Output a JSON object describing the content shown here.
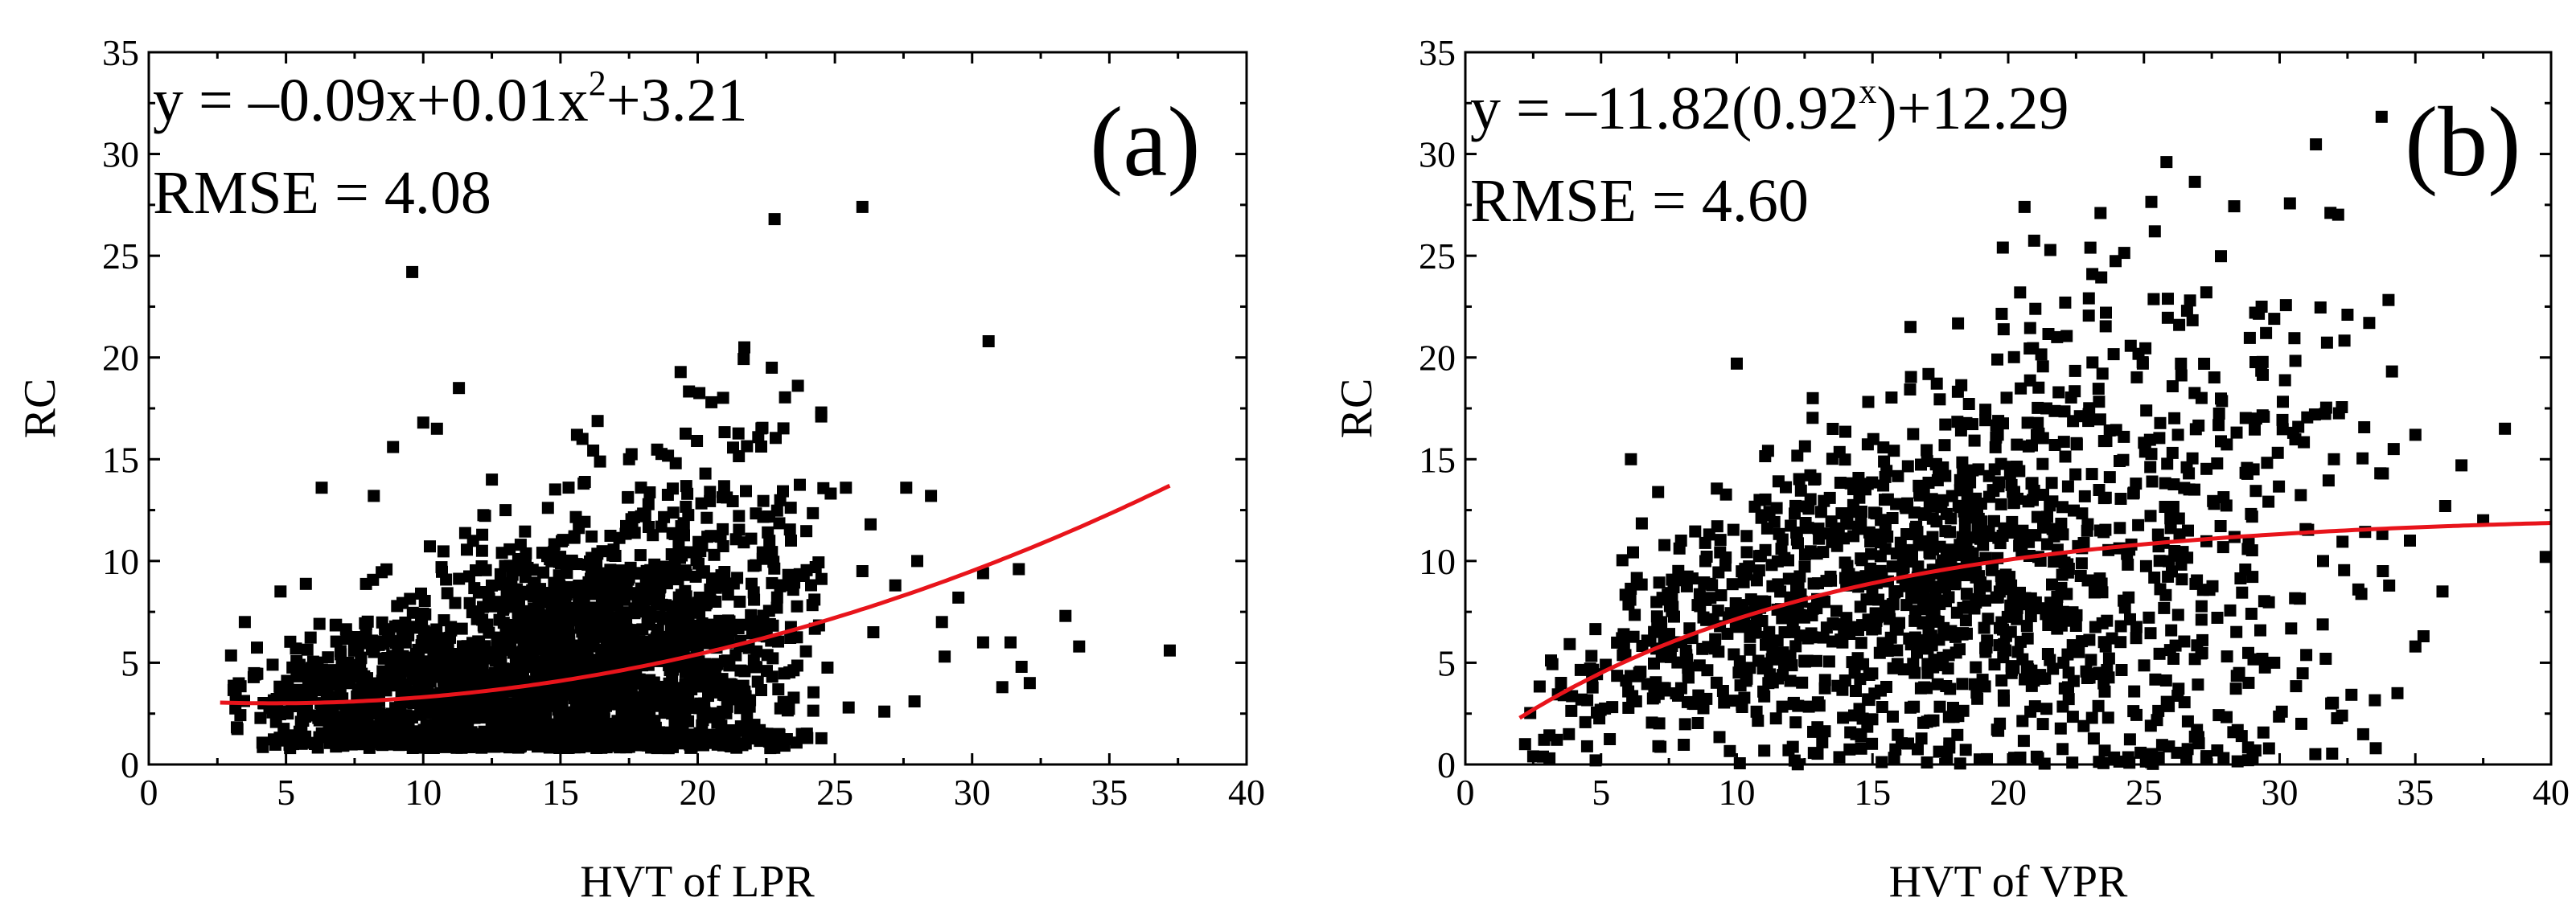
{
  "colors": {
    "points": "#000000",
    "fit": "#e8141b",
    "axis": "#000000",
    "background": "#ffffff"
  },
  "chart_data": [
    {
      "type": "scatter",
      "panel_label": "(a)",
      "title": "",
      "xlabel": "HVT of LPR",
      "ylabel": "RC",
      "xlim": [
        0,
        40
      ],
      "ylim": [
        0,
        35
      ],
      "xticks": [
        0,
        5,
        10,
        15,
        20,
        25,
        30,
        35,
        40
      ],
      "yticks": [
        0,
        5,
        10,
        15,
        20,
        25,
        30,
        35
      ],
      "equation": {
        "lhs": "y = ",
        "p1": "–0.09x+0.01x",
        "sup": "2",
        "p2": "+3.21"
      },
      "rmse": "RMSE = 4.08",
      "fit": {
        "type": "polynomial",
        "a": -0.09,
        "b": 0.01,
        "c": 3.21,
        "x_range": [
          2.6,
          37.2
        ]
      },
      "point_generation": {
        "seed": 12345,
        "count": 2400,
        "x_range": [
          2.6,
          25.0
        ],
        "x_mode": 16,
        "y_center": "fit",
        "y_spread_base": 0.9,
        "y_spread_slope": 0.18,
        "y_min": 0.8
      },
      "points": [
        [
          9.6,
          24.2
        ],
        [
          22.8,
          26.8
        ],
        [
          26.0,
          27.4
        ],
        [
          21.7,
          20.5
        ],
        [
          22.7,
          19.5
        ],
        [
          30.6,
          20.8
        ],
        [
          11.3,
          18.5
        ],
        [
          20.5,
          17.8
        ],
        [
          24.5,
          17.3
        ],
        [
          24.5,
          17.1
        ],
        [
          15.6,
          16.2
        ],
        [
          15.8,
          16.0
        ],
        [
          10.0,
          16.8
        ],
        [
          8.9,
          15.6
        ],
        [
          10.5,
          16.5
        ],
        [
          27.6,
          13.6
        ],
        [
          28.5,
          13.2
        ],
        [
          26.3,
          11.8
        ],
        [
          30.4,
          9.4
        ],
        [
          31.7,
          9.6
        ],
        [
          31.4,
          6.0
        ],
        [
          30.4,
          6.0
        ],
        [
          33.4,
          7.3
        ],
        [
          33.9,
          5.8
        ],
        [
          37.2,
          5.6
        ],
        [
          31.1,
          3.8
        ],
        [
          31.8,
          4.8
        ],
        [
          32.1,
          4.0
        ],
        [
          26.4,
          6.5
        ],
        [
          29.0,
          5.3
        ],
        [
          27.9,
          3.1
        ],
        [
          26.8,
          2.6
        ],
        [
          25.5,
          2.8
        ],
        [
          6.3,
          13.6
        ],
        [
          8.2,
          13.2
        ],
        [
          4.8,
          8.5
        ],
        [
          3.5,
          7.0
        ],
        [
          13.0,
          12.5
        ],
        [
          17.5,
          15.0
        ],
        [
          19.2,
          14.8
        ],
        [
          12.5,
          14.0
        ],
        [
          23.4,
          11.0
        ],
        [
          25.4,
          13.6
        ],
        [
          28.0,
          10.0
        ],
        [
          29.5,
          8.2
        ],
        [
          27.2,
          8.8
        ],
        [
          28.9,
          7.0
        ],
        [
          26.0,
          9.5
        ]
      ]
    },
    {
      "type": "scatter",
      "panel_label": "(b)",
      "title": "",
      "xlabel": "HVT of VPR",
      "ylabel": "RC",
      "xlim": [
        0,
        40
      ],
      "ylim": [
        0,
        35
      ],
      "xticks": [
        0,
        5,
        10,
        15,
        20,
        25,
        30,
        35,
        40
      ],
      "yticks": [
        0,
        5,
        10,
        15,
        20,
        25,
        30,
        35
      ],
      "equation": {
        "lhs": "y = ",
        "p1": "–11.82(0.92",
        "sup": "x",
        "p2": ")+12.29"
      },
      "rmse": "RMSE = 4.60",
      "fit": {
        "type": "exponential",
        "a": -11.82,
        "b": 0.92,
        "c": 12.29,
        "x_range": [
          2.0,
          40.0
        ]
      },
      "point_generation": {
        "seed": 67890,
        "count": 1400,
        "x_range": [
          1.8,
          35.0
        ],
        "x_mode": 18,
        "y_center": "fit",
        "y_spread_base": 1.0,
        "y_spread_slope": 0.22,
        "y_min": 0.0
      },
      "points": [
        [
          20.6,
          27.4
        ],
        [
          23.4,
          27.1
        ],
        [
          25.4,
          26.2
        ],
        [
          19.8,
          25.4
        ],
        [
          23.1,
          24.1
        ],
        [
          22.1,
          22.7
        ],
        [
          26.7,
          22.8
        ],
        [
          23.6,
          22.2
        ],
        [
          29.1,
          22.2
        ],
        [
          29.5,
          21.2
        ],
        [
          33.3,
          21.7
        ],
        [
          27.3,
          23.2
        ],
        [
          29.8,
          21.9
        ],
        [
          26.3,
          21.6
        ],
        [
          21.8,
          21.0
        ],
        [
          10.0,
          19.7
        ],
        [
          19.6,
          19.9
        ],
        [
          38.3,
          16.5
        ],
        [
          35.0,
          16.2
        ],
        [
          36.1,
          12.7
        ],
        [
          34.8,
          11.0
        ],
        [
          35.0,
          5.8
        ],
        [
          35.3,
          6.3
        ],
        [
          39.8,
          10.2
        ],
        [
          33.8,
          9.5
        ],
        [
          32.9,
          8.6
        ],
        [
          31.9,
          3.0
        ],
        [
          32.3,
          2.4
        ],
        [
          30.8,
          2.0
        ],
        [
          29.8,
          5.0
        ],
        [
          6.1,
          15.0
        ],
        [
          2.5,
          0.4
        ],
        [
          2.2,
          1.0
        ],
        [
          3.1,
          0.3
        ],
        [
          4.8,
          0.2
        ],
        [
          27.3,
          0.3
        ],
        [
          28.6,
          1.4
        ],
        [
          31.6,
          10.0
        ],
        [
          36.7,
          14.7
        ],
        [
          34.2,
          15.5
        ],
        [
          33.8,
          14.3
        ],
        [
          30.5,
          16.3
        ],
        [
          31.3,
          17.2
        ],
        [
          32.0,
          15.0
        ],
        [
          36.0,
          8.5
        ],
        [
          37.5,
          12.0
        ],
        [
          12.8,
          18.0
        ],
        [
          16.4,
          21.5
        ]
      ]
    }
  ]
}
